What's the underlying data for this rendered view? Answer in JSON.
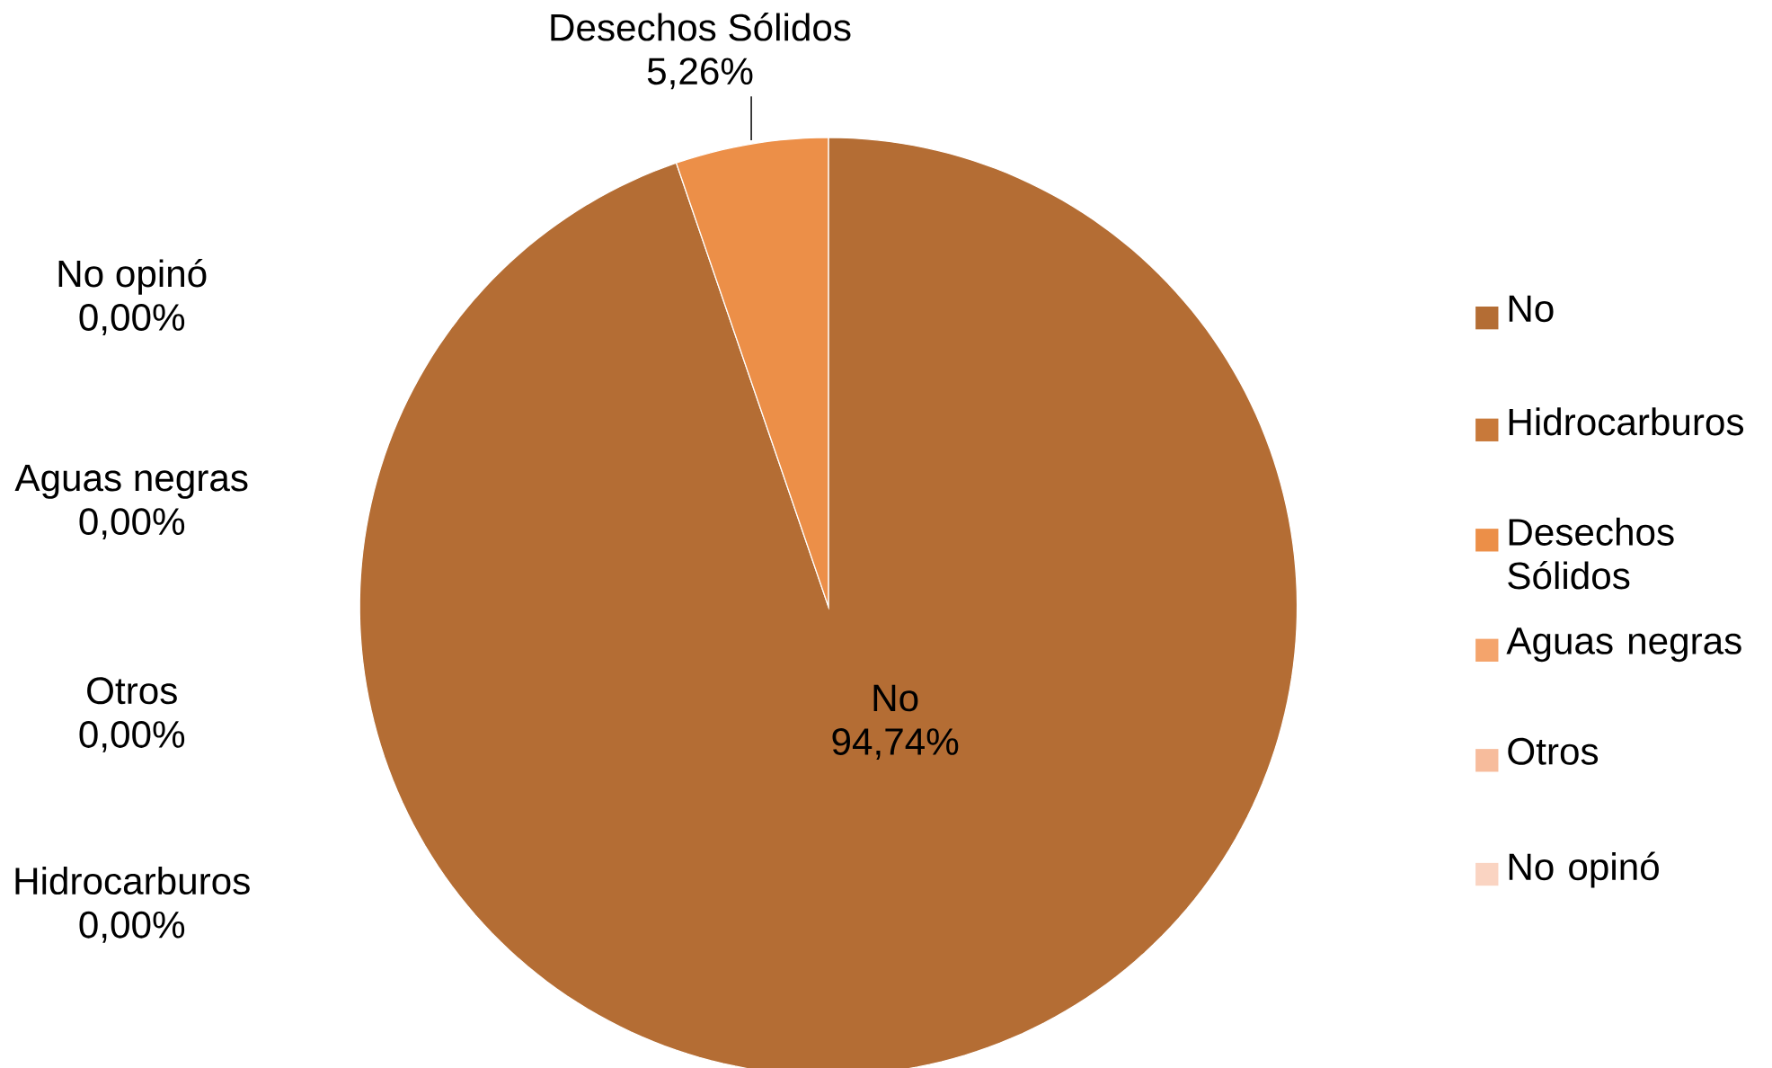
{
  "chart_data": {
    "type": "pie",
    "categories": [
      "No",
      "Hidrocarburos",
      "Desechos Sólidos",
      "Aguas negras",
      "Otros",
      "No opinó"
    ],
    "values": [
      94.74,
      0,
      5.26,
      0,
      0,
      0
    ],
    "value_labels": [
      "94,74%",
      "0,00%",
      "5,26%",
      "0,00%",
      "0,00%",
      "0,00%"
    ],
    "colors": [
      "#b46d34",
      "#c8793a",
      "#ec8f48",
      "#f4a46c",
      "#f7bc9c",
      "#fad4c2"
    ],
    "legend": "right"
  }
}
